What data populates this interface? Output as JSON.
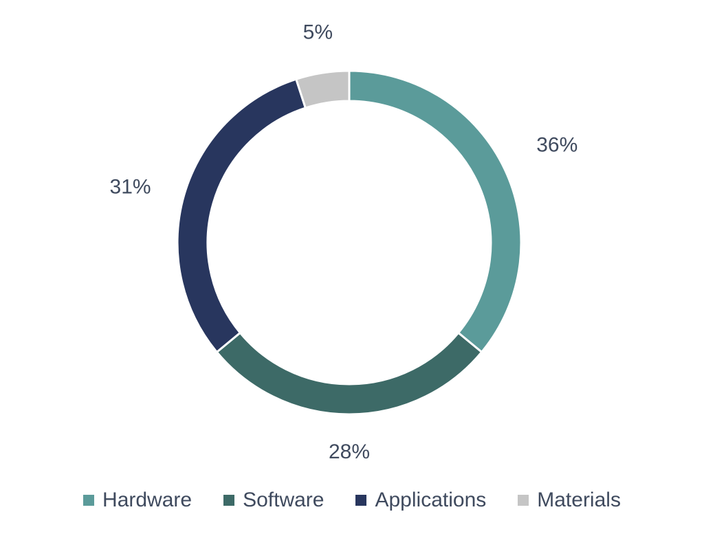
{
  "chart_data": {
    "type": "pie",
    "title": "",
    "categories": [
      "Hardware",
      "Software",
      "Applications",
      "Materials"
    ],
    "values": [
      36,
      28,
      31,
      5
    ],
    "data_labels": [
      "36%",
      "28%",
      "31%",
      "5%"
    ],
    "colors": [
      "#5b9b9a",
      "#3d6a67",
      "#28365e",
      "#c5c5c5"
    ],
    "donut": true,
    "legend": "bottom",
    "grid": false
  }
}
